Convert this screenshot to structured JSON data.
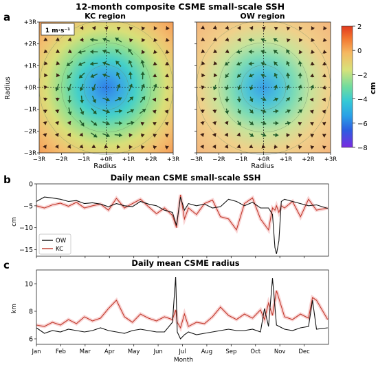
{
  "figure": {
    "title": "12-month composite CSME small-scale SSH",
    "panel_letters": [
      "a",
      "b",
      "c"
    ]
  },
  "chart_data": [
    {
      "type": "heatmap",
      "panel": "a",
      "subtitles": [
        "KC region",
        "OW region"
      ],
      "xlabel": "Radius",
      "ylabel": "Radius",
      "x_ticks": [
        "−3R",
        "−2R",
        "−1R",
        "+0R",
        "+1R",
        "+2R",
        "+3R"
      ],
      "y_ticks": [
        "+3R",
        "+2R",
        "+1R",
        "+0R",
        "−1R",
        "−2R",
        "−3R"
      ],
      "quiver_key": "1 m·s⁻¹",
      "colorbar": {
        "label": "cm",
        "min": -8,
        "max": 2,
        "ticks": [
          "2",
          "0",
          "−2",
          "−4",
          "−6",
          "−8"
        ]
      },
      "center_ssh_cm": [
        -5.2,
        -3.8
      ]
    },
    {
      "type": "line",
      "panel": "b",
      "title": "Daily mean CSME small-scale SSH",
      "ylabel": "cm",
      "ylim": [
        -16.5,
        0
      ],
      "yticks": [
        "0",
        "−5",
        "−10",
        "−15"
      ],
      "legend_placement": "lower-left",
      "x_days": [
        0,
        10,
        20,
        30,
        40,
        50,
        60,
        70,
        80,
        90,
        100,
        110,
        120,
        130,
        140,
        150,
        160,
        170,
        175,
        180,
        185,
        190,
        200,
        210,
        220,
        230,
        240,
        250,
        260,
        270,
        280,
        290,
        295,
        298,
        300,
        303,
        306,
        310,
        320,
        330,
        340,
        350,
        364
      ],
      "series": [
        {
          "name": "OW",
          "color": "#111111",
          "values": [
            -4,
            -3,
            -3.2,
            -3.5,
            -4,
            -3.8,
            -4.5,
            -4.3,
            -4.6,
            -5.2,
            -4.5,
            -5,
            -5.2,
            -4,
            -4.6,
            -5,
            -6,
            -6.5,
            -9.5,
            -3,
            -6,
            -4.5,
            -5,
            -4.6,
            -5.5,
            -5.2,
            -3.5,
            -4,
            -5,
            -4.2,
            -5.5,
            -5.5,
            -7,
            -14.5,
            -16,
            -13,
            -4,
            -3.5,
            -4,
            -4.5,
            -5,
            -4.8,
            -5.6
          ]
        },
        {
          "name": "KC",
          "color": "#c0392b",
          "values": [
            -5,
            -5.5,
            -4.8,
            -4.4,
            -5.1,
            -4.2,
            -5.5,
            -5,
            -4.6,
            -6,
            -3.3,
            -5.5,
            -4.5,
            -3.5,
            -5.2,
            -6.8,
            -5.5,
            -7.2,
            -10,
            -2.5,
            -8,
            -5.5,
            -7,
            -4.5,
            -3.7,
            -7.5,
            -8,
            -10.5,
            -4.5,
            -3.2,
            -8,
            -10.5,
            -5.5,
            -6,
            -5,
            -6.5,
            -5,
            -5.5,
            -4,
            -7.5,
            -3.5,
            -6,
            -5.5
          ]
        }
      ]
    },
    {
      "type": "line",
      "panel": "c",
      "title": "Daily mean CSME radius",
      "xlabel": "Month",
      "ylabel": "km",
      "ylim": [
        5.6,
        11
      ],
      "yticks": [
        "6",
        "8",
        "10"
      ],
      "x_tick_labels": [
        "Jan",
        "Feb",
        "Mar",
        "Apr",
        "May",
        "Jun",
        "Jul",
        "Aug",
        "Sep",
        "Oct",
        "Nov",
        "Dec"
      ],
      "x_days": [
        0,
        10,
        20,
        30,
        40,
        50,
        60,
        70,
        80,
        90,
        100,
        110,
        120,
        130,
        140,
        150,
        160,
        170,
        174,
        176,
        180,
        185,
        190,
        200,
        210,
        220,
        230,
        240,
        250,
        260,
        270,
        280,
        285,
        290,
        295,
        300,
        310,
        320,
        330,
        340,
        345,
        350,
        364
      ],
      "series": [
        {
          "name": "OW",
          "color": "#111111",
          "values": [
            6.8,
            6.4,
            6.6,
            6.5,
            6.7,
            6.6,
            6.5,
            6.6,
            6.8,
            6.6,
            6.5,
            6.4,
            6.6,
            6.7,
            6.6,
            6.5,
            6.5,
            7.2,
            10.5,
            6.5,
            6,
            6.3,
            6.5,
            6.3,
            6.4,
            6.5,
            6.6,
            6.7,
            6.6,
            6.6,
            6.7,
            6.5,
            8.2,
            6.9,
            10.4,
            7,
            6.7,
            6.6,
            6.8,
            6.9,
            8.8,
            6.7,
            6.8
          ]
        },
        {
          "name": "KC",
          "color": "#c0392b",
          "values": [
            7,
            6.9,
            7.2,
            7,
            7.4,
            7.1,
            7.6,
            7.3,
            7.5,
            8.2,
            8.8,
            7.6,
            7.2,
            7.8,
            7.5,
            7.3,
            7.6,
            7.4,
            8.1,
            7.2,
            6.8,
            7.8,
            6.9,
            7.2,
            7.1,
            7.6,
            8.3,
            7.7,
            7.4,
            7.8,
            7.5,
            8.1,
            7.4,
            8.6,
            7.7,
            9.5,
            7.6,
            7.4,
            7.8,
            7.5,
            9,
            8.8,
            7.4
          ]
        }
      ]
    }
  ]
}
